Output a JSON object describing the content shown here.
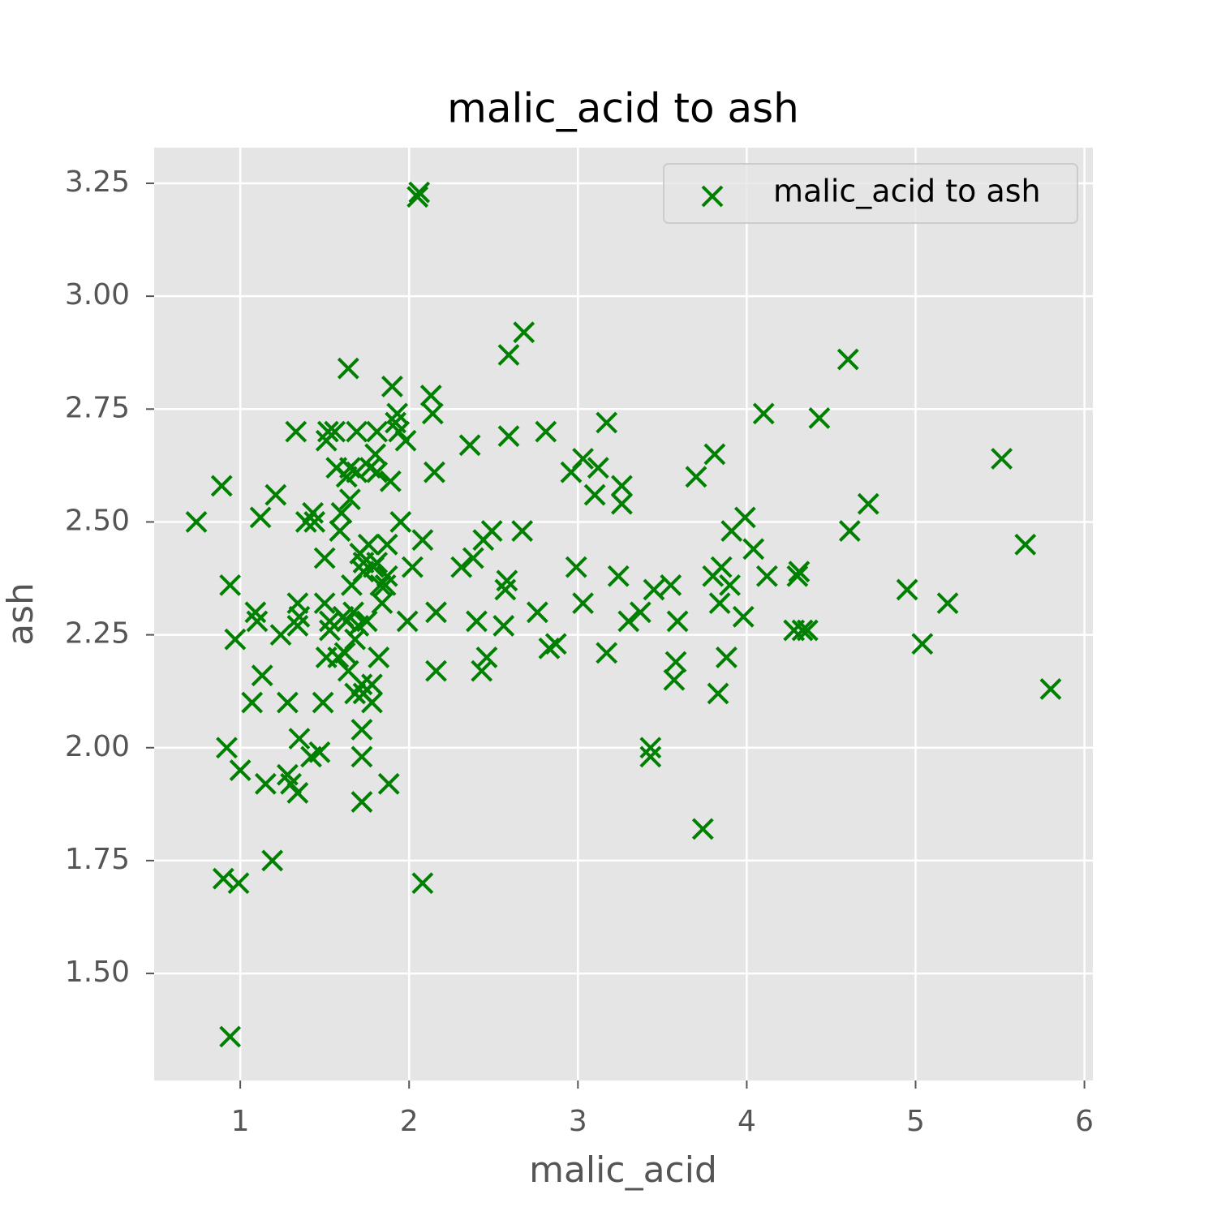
{
  "chart_data": {
    "type": "scatter",
    "title": "malic_acid to ash",
    "xlabel": "malic_acid",
    "ylabel": "ash",
    "series": [
      {
        "name": "malic_acid to ash",
        "color": "#008000",
        "marker": "x"
      }
    ],
    "x": [
      0.74,
      0.89,
      0.92,
      0.94,
      0.9,
      0.99,
      0.94,
      0.97,
      1.0,
      1.07,
      1.09,
      1.1,
      1.12,
      1.13,
      1.15,
      1.19,
      1.21,
      1.24,
      1.28,
      1.28,
      1.3,
      1.34,
      1.35,
      1.33,
      1.34,
      1.35,
      1.34,
      1.39,
      1.42,
      1.44,
      1.43,
      1.47,
      1.49,
      1.5,
      1.5,
      1.51,
      1.52,
      1.51,
      1.53,
      1.53,
      1.56,
      1.57,
      1.58,
      1.59,
      1.6,
      1.61,
      1.62,
      1.63,
      1.64,
      1.63,
      1.64,
      1.65,
      1.66,
      1.65,
      1.67,
      1.68,
      1.68,
      1.69,
      1.69,
      1.7,
      1.71,
      1.72,
      1.72,
      1.72,
      1.72,
      1.73,
      1.73,
      1.73,
      1.75,
      1.76,
      1.77,
      1.78,
      1.78,
      1.79,
      1.8,
      1.81,
      1.81,
      1.81,
      1.82,
      1.83,
      1.84,
      1.86,
      1.87,
      1.87,
      1.88,
      1.89,
      1.9,
      1.92,
      1.93,
      1.94,
      1.95,
      1.98,
      1.99,
      2.02,
      2.05,
      2.06,
      2.08,
      2.08,
      2.13,
      2.14,
      2.15,
      2.16,
      2.16,
      2.31,
      2.36,
      2.38,
      2.4,
      2.43,
      2.44,
      2.46,
      2.49,
      2.56,
      2.57,
      2.58,
      2.59,
      2.59,
      2.67,
      2.68,
      2.76,
      2.81,
      2.83,
      2.87,
      2.96,
      2.99,
      3.03,
      3.03,
      3.1,
      3.12,
      3.17,
      3.17,
      3.24,
      3.26,
      3.26,
      3.3,
      3.37,
      3.43,
      3.43,
      3.45,
      3.55,
      3.57,
      3.58,
      3.59,
      3.7,
      3.74,
      3.8,
      3.81,
      3.83,
      3.84,
      3.85,
      3.88,
      3.9,
      3.91,
      3.98,
      3.99,
      4.04,
      4.1,
      4.12,
      4.28,
      4.3,
      4.31,
      4.33,
      4.36,
      4.43,
      4.6,
      4.61,
      4.72,
      4.95,
      5.04,
      5.19,
      5.51,
      5.65,
      5.8
    ],
    "y": [
      2.5,
      2.58,
      2.0,
      2.36,
      1.71,
      1.7,
      1.36,
      2.24,
      1.95,
      2.1,
      2.3,
      2.28,
      2.51,
      2.16,
      1.92,
      1.75,
      2.56,
      2.25,
      2.1,
      1.94,
      1.92,
      1.9,
      2.02,
      2.7,
      2.32,
      2.29,
      2.27,
      2.5,
      1.98,
      2.5,
      2.52,
      1.99,
      2.1,
      2.42,
      2.32,
      2.2,
      2.7,
      2.68,
      2.28,
      2.26,
      2.7,
      2.62,
      2.2,
      2.48,
      2.52,
      2.29,
      2.21,
      2.28,
      2.84,
      2.6,
      2.17,
      2.55,
      2.36,
      2.62,
      2.3,
      2.12,
      2.24,
      2.7,
      2.61,
      2.27,
      2.43,
      2.14,
      2.04,
      1.98,
      1.88,
      2.41,
      2.39,
      2.12,
      2.28,
      2.45,
      2.62,
      2.14,
      2.1,
      2.4,
      2.65,
      2.41,
      2.61,
      2.7,
      2.2,
      2.36,
      2.32,
      2.36,
      2.45,
      2.38,
      1.92,
      2.59,
      2.8,
      2.72,
      2.74,
      2.7,
      2.5,
      2.68,
      2.28,
      2.4,
      3.22,
      3.23,
      2.46,
      1.7,
      2.78,
      2.74,
      2.61,
      2.3,
      2.17,
      2.4,
      2.67,
      2.42,
      2.28,
      2.17,
      2.46,
      2.2,
      2.48,
      2.27,
      2.35,
      2.37,
      2.87,
      2.69,
      2.48,
      2.92,
      2.3,
      2.7,
      2.22,
      2.23,
      2.61,
      2.4,
      2.64,
      2.32,
      2.56,
      2.62,
      2.72,
      2.21,
      2.38,
      2.58,
      2.54,
      2.28,
      2.3,
      2.0,
      1.98,
      2.35,
      2.36,
      2.15,
      2.19,
      2.28,
      2.6,
      1.82,
      2.38,
      2.65,
      2.12,
      2.32,
      2.4,
      2.2,
      2.36,
      2.48,
      2.29,
      2.51,
      2.44,
      2.74,
      2.38,
      2.26,
      2.38,
      2.39,
      2.26,
      2.26,
      2.73,
      2.86,
      2.48,
      2.54,
      2.35,
      2.23,
      2.32,
      2.64,
      2.45,
      2.13
    ],
    "xlim": [
      0.49,
      6.05
    ],
    "ylim": [
      1.263,
      3.329
    ],
    "xticks": [
      1,
      2,
      3,
      4,
      5,
      6
    ],
    "yticks": [
      {
        "value": 1.5,
        "label": "1.50"
      },
      {
        "value": 1.75,
        "label": "1.75"
      },
      {
        "value": 2.0,
        "label": "2.00"
      },
      {
        "value": 2.25,
        "label": "2.25"
      },
      {
        "value": 2.5,
        "label": "2.50"
      },
      {
        "value": 2.75,
        "label": "2.75"
      },
      {
        "value": 3.0,
        "label": "3.00"
      },
      {
        "value": 3.25,
        "label": "3.25"
      }
    ],
    "grid": true,
    "legend": "upper right"
  }
}
